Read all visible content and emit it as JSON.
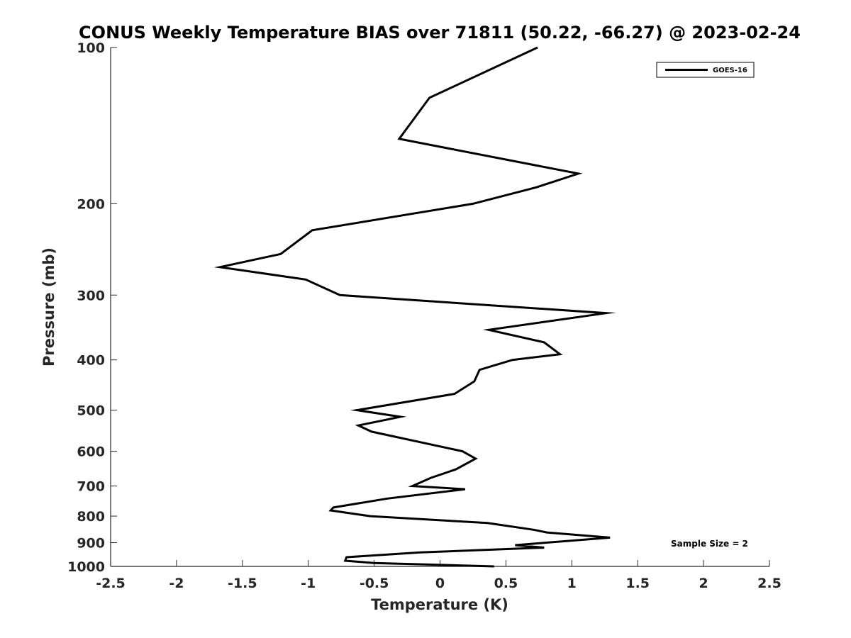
{
  "chart_data": {
    "type": "line",
    "title": "CONUS Weekly Temperature BIAS over 71811 (50.22, -66.27) @ 2023-02-24",
    "xlabel": "Temperature (K)",
    "ylabel": "Pressure (mb)",
    "xlim": [
      -2.5,
      2.5
    ],
    "ylim": [
      100,
      1000
    ],
    "y_scale": "log",
    "y_reversed": true,
    "x_ticks": [
      -2.5,
      -2,
      -1.5,
      -1,
      -0.5,
      0,
      0.5,
      1,
      1.5,
      2,
      2.5
    ],
    "x_tick_labels": [
      "-2.5",
      "-2",
      "-1.5",
      "-1",
      "-0.5",
      "0",
      "0.5",
      "1",
      "1.5",
      "2",
      "2.5"
    ],
    "y_ticks": [
      100,
      200,
      300,
      400,
      500,
      600,
      700,
      800,
      900,
      1000
    ],
    "y_tick_labels": [
      "100",
      "200",
      "300",
      "400",
      "500",
      "600",
      "700",
      "800",
      "900",
      "1000"
    ],
    "grid": false,
    "legend_position": "top-right",
    "series": [
      {
        "name": "GOES-16",
        "color": "#000000",
        "points": [
          {
            "x": 0.74,
            "p": 100
          },
          {
            "x": -0.08,
            "p": 125
          },
          {
            "x": -0.31,
            "p": 150
          },
          {
            "x": 1.05,
            "p": 175
          },
          {
            "x": 0.73,
            "p": 186
          },
          {
            "x": 0.25,
            "p": 200
          },
          {
            "x": -0.97,
            "p": 225
          },
          {
            "x": -1.21,
            "p": 250
          },
          {
            "x": -1.67,
            "p": 265
          },
          {
            "x": -1.02,
            "p": 280
          },
          {
            "x": -0.76,
            "p": 300
          },
          {
            "x": 1.26,
            "p": 325
          },
          {
            "x": 0.37,
            "p": 350
          },
          {
            "x": 0.79,
            "p": 370
          },
          {
            "x": 0.91,
            "p": 390
          },
          {
            "x": 0.55,
            "p": 400
          },
          {
            "x": 0.3,
            "p": 418
          },
          {
            "x": 0.26,
            "p": 440
          },
          {
            "x": 0.11,
            "p": 465
          },
          {
            "x": -0.63,
            "p": 500
          },
          {
            "x": -0.3,
            "p": 515
          },
          {
            "x": -0.62,
            "p": 535
          },
          {
            "x": -0.52,
            "p": 550
          },
          {
            "x": 0.17,
            "p": 600
          },
          {
            "x": 0.27,
            "p": 620
          },
          {
            "x": 0.12,
            "p": 650
          },
          {
            "x": -0.07,
            "p": 675
          },
          {
            "x": -0.21,
            "p": 700
          },
          {
            "x": 0.19,
            "p": 710
          },
          {
            "x": -0.4,
            "p": 740
          },
          {
            "x": -0.81,
            "p": 770
          },
          {
            "x": -0.83,
            "p": 780
          },
          {
            "x": -0.53,
            "p": 800
          },
          {
            "x": 0.36,
            "p": 825
          },
          {
            "x": 0.71,
            "p": 850
          },
          {
            "x": 0.81,
            "p": 860
          },
          {
            "x": 1.29,
            "p": 880
          },
          {
            "x": 0.57,
            "p": 910
          },
          {
            "x": 0.79,
            "p": 920
          },
          {
            "x": -0.15,
            "p": 940
          },
          {
            "x": -0.71,
            "p": 960
          },
          {
            "x": -0.72,
            "p": 975
          },
          {
            "x": -0.5,
            "p": 985
          },
          {
            "x": 0.41,
            "p": 1000
          }
        ]
      }
    ],
    "annotations": [
      {
        "text": "Sample Size = 2"
      }
    ]
  }
}
